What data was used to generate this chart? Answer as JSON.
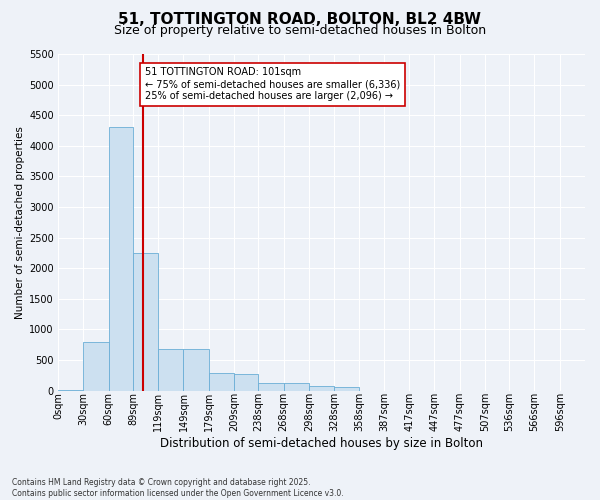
{
  "title_line1": "51, TOTTINGTON ROAD, BOLTON, BL2 4BW",
  "title_line2": "Size of property relative to semi-detached houses in Bolton",
  "xlabel": "Distribution of semi-detached houses by size in Bolton",
  "ylabel": "Number of semi-detached properties",
  "footnote": "Contains HM Land Registry data © Crown copyright and database right 2025.\nContains public sector information licensed under the Open Government Licence v3.0.",
  "bar_left_edges": [
    0,
    30,
    60,
    89,
    119,
    149,
    179,
    209,
    238,
    268,
    298,
    328,
    358,
    387,
    417,
    447,
    477,
    507,
    536,
    566
  ],
  "bar_widths": [
    30,
    30,
    29,
    30,
    30,
    30,
    30,
    29,
    30,
    30,
    30,
    29,
    29,
    30,
    30,
    30,
    30,
    29,
    30,
    30
  ],
  "bar_heights": [
    10,
    800,
    4300,
    2250,
    680,
    680,
    290,
    270,
    130,
    120,
    80,
    65,
    0,
    0,
    0,
    0,
    0,
    0,
    0,
    0
  ],
  "bar_color": "#cce0f0",
  "bar_edgecolor": "#6aaed6",
  "vline_x": 101,
  "vline_color": "#cc0000",
  "annotation_text": "51 TOTTINGTON ROAD: 101sqm\n← 75% of semi-detached houses are smaller (6,336)\n25% of semi-detached houses are larger (2,096) →",
  "annotation_box_facecolor": "#ffffff",
  "annotation_box_edgecolor": "#cc0000",
  "ylim": [
    0,
    5500
  ],
  "yticks": [
    0,
    500,
    1000,
    1500,
    2000,
    2500,
    3000,
    3500,
    4000,
    4500,
    5000,
    5500
  ],
  "xtick_positions": [
    0,
    30,
    60,
    89,
    119,
    149,
    179,
    209,
    238,
    268,
    298,
    328,
    358,
    387,
    417,
    447,
    477,
    507,
    536,
    566,
    596
  ],
  "xtick_labels": [
    "0sqm",
    "30sqm",
    "60sqm",
    "89sqm",
    "119sqm",
    "149sqm",
    "179sqm",
    "209sqm",
    "238sqm",
    "268sqm",
    "298sqm",
    "328sqm",
    "358sqm",
    "387sqm",
    "417sqm",
    "447sqm",
    "477sqm",
    "507sqm",
    "536sqm",
    "566sqm",
    "596sqm"
  ],
  "background_color": "#eef2f8",
  "plot_background": "#eef2f8",
  "grid_color": "#ffffff",
  "title1_fontsize": 11,
  "title2_fontsize": 9,
  "tick_fontsize": 7,
  "ylabel_fontsize": 7.5,
  "xlabel_fontsize": 8.5,
  "annot_fontsize": 7,
  "footnote_fontsize": 5.5
}
